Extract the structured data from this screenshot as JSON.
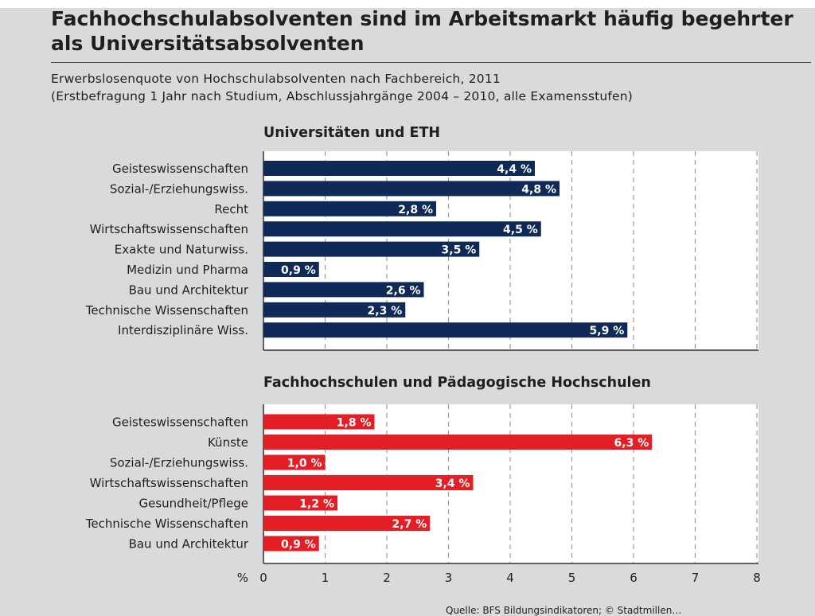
{
  "title": "Fachhochschulabsolventen sind im Arbeitsmarkt häufig begehrter als Universitätsabsolventen",
  "subtitle_1": "Erwerbslosenquote von Hochschulabsolventen nach Fachbereich, 2011",
  "subtitle_2": "(Erstbefragung 1 Jahr nach Studium, Abschlussjahrgänge 2004 – 2010, alle Examensstufen)",
  "source": "Quelle: BFS Bildungsindikatoren; © Stadtmillen…",
  "chart_data": [
    {
      "type": "bar",
      "orientation": "horizontal",
      "title": "Universitäten und ETH",
      "color": "#0f2a56",
      "categories": [
        "Geisteswissenschaften",
        "Sozial-/Erziehungswiss.",
        "Recht",
        "Wirtschaftswissenschaften",
        "Exakte und Naturwiss.",
        "Medizin und Pharma",
        "Bau und Architektur",
        "Technische Wissenschaften",
        "Interdisziplinäre Wiss."
      ],
      "values": [
        4.4,
        4.8,
        2.8,
        4.5,
        3.5,
        0.9,
        2.6,
        2.3,
        5.9
      ],
      "labels": [
        "4,4 %",
        "4,8 %",
        "2,8 %",
        "4,5 %",
        "3,5 %",
        "0,9 %",
        "2,6 %",
        "2,3 %",
        "5,9 %"
      ],
      "xlim": [
        0,
        8
      ],
      "grid": true
    },
    {
      "type": "bar",
      "orientation": "horizontal",
      "title": "Fachhochschulen und Pädagogische Hochschulen",
      "color": "#e31e24",
      "categories": [
        "Geisteswissenschaften",
        "Künste",
        "Sozial-/Erziehungswiss.",
        "Wirtschaftswissenschaften",
        "Gesundheit/Pflege",
        "Technische Wissenschaften",
        "Bau und Architektur"
      ],
      "values": [
        1.8,
        6.3,
        1.0,
        3.4,
        1.2,
        2.7,
        0.9
      ],
      "labels": [
        "1,8 %",
        "6,3 %",
        "1,0 %",
        "3,4 %",
        "1,2 %",
        "2,7 %",
        "0,9 %"
      ],
      "xlim": [
        0,
        8
      ],
      "xlabel": "%",
      "xticks": [
        "0",
        "1",
        "2",
        "3",
        "4",
        "5",
        "6",
        "7",
        "8"
      ],
      "grid": true
    }
  ]
}
